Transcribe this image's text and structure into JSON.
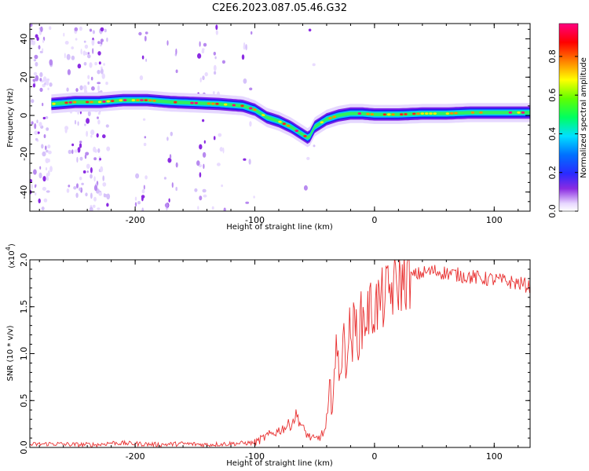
{
  "title": "C2E6.2023.087.05.46.G32",
  "chart_data": [
    {
      "type": "heatmap",
      "xlabel": "Height of straight line (km)",
      "ylabel": "Frequency (Hz)",
      "xlim": [
        -288,
        130
      ],
      "ylim": [
        -50,
        48
      ],
      "xticks": [
        -200,
        -100,
        0,
        100
      ],
      "yticks": [
        -40,
        -20,
        0,
        20,
        40
      ],
      "colorbar": {
        "label": "Normalized spectral amplitude",
        "range": [
          0.0,
          0.97
        ],
        "ticks": [
          "0.0",
          "0.2",
          "0.4",
          "0.6",
          "0.8"
        ],
        "tick_values": [
          0.0,
          0.2,
          0.4,
          0.6,
          0.8
        ],
        "colormap": "hsv-like purple-blue-cyan-green-yellow-orange-red-magenta"
      },
      "ridge": {
        "x": [
          -270,
          -250,
          -230,
          -210,
          -190,
          -170,
          -150,
          -130,
          -110,
          -100,
          -90,
          -80,
          -70,
          -60,
          -55,
          -50,
          -45,
          -40,
          -30,
          -20,
          -10,
          0,
          20,
          40,
          60,
          80,
          100,
          130
        ],
        "y": [
          6,
          7,
          7,
          8,
          8,
          7,
          6.5,
          6,
          5,
          3,
          -1,
          -3,
          -6,
          -10,
          -12,
          -6,
          -4,
          -2,
          0,
          1,
          1,
          0.5,
          0.5,
          1,
          1,
          1.5,
          1.5,
          1.5
        ]
      }
    },
    {
      "type": "line",
      "xlabel": "Height of straight line (km)",
      "ylabel": "SNR (10 * v/v)",
      "y_multiplier": "(x10",
      "y_multiplier_exp": "4",
      "y_multiplier_close": ")",
      "xlim": [
        -288,
        130
      ],
      "ylim": [
        0,
        2.0
      ],
      "xticks": [
        -200,
        -100,
        0,
        100
      ],
      "yticks": [
        "0.0",
        "0.5",
        "1.0",
        "1.5",
        "2.0"
      ],
      "ytick_values": [
        0.0,
        0.5,
        1.0,
        1.5,
        2.0
      ],
      "series": [
        {
          "color": "#e83030",
          "x": [
            -288,
            -270,
            -250,
            -230,
            -220,
            -200,
            -180,
            -160,
            -140,
            -120,
            -100,
            -90,
            -80,
            -70,
            -65,
            -60,
            -55,
            -50,
            -45,
            -40,
            -35,
            -30,
            -25,
            -20,
            -15,
            -10,
            -5,
            0,
            5,
            10,
            20,
            30,
            40,
            50,
            60,
            70,
            80,
            90,
            100,
            110,
            120,
            130
          ],
          "y": [
            0.03,
            0.04,
            0.03,
            0.03,
            0.05,
            0.04,
            0.03,
            0.04,
            0.03,
            0.04,
            0.05,
            0.12,
            0.18,
            0.25,
            0.35,
            0.2,
            0.12,
            0.08,
            0.12,
            0.2,
            0.75,
            0.95,
            1.05,
            1.2,
            1.25,
            1.35,
            1.45,
            1.5,
            1.55,
            1.62,
            1.75,
            1.82,
            1.86,
            1.88,
            1.86,
            1.84,
            1.82,
            1.8,
            1.79,
            1.77,
            1.75,
            1.72
          ]
        }
      ]
    }
  ]
}
